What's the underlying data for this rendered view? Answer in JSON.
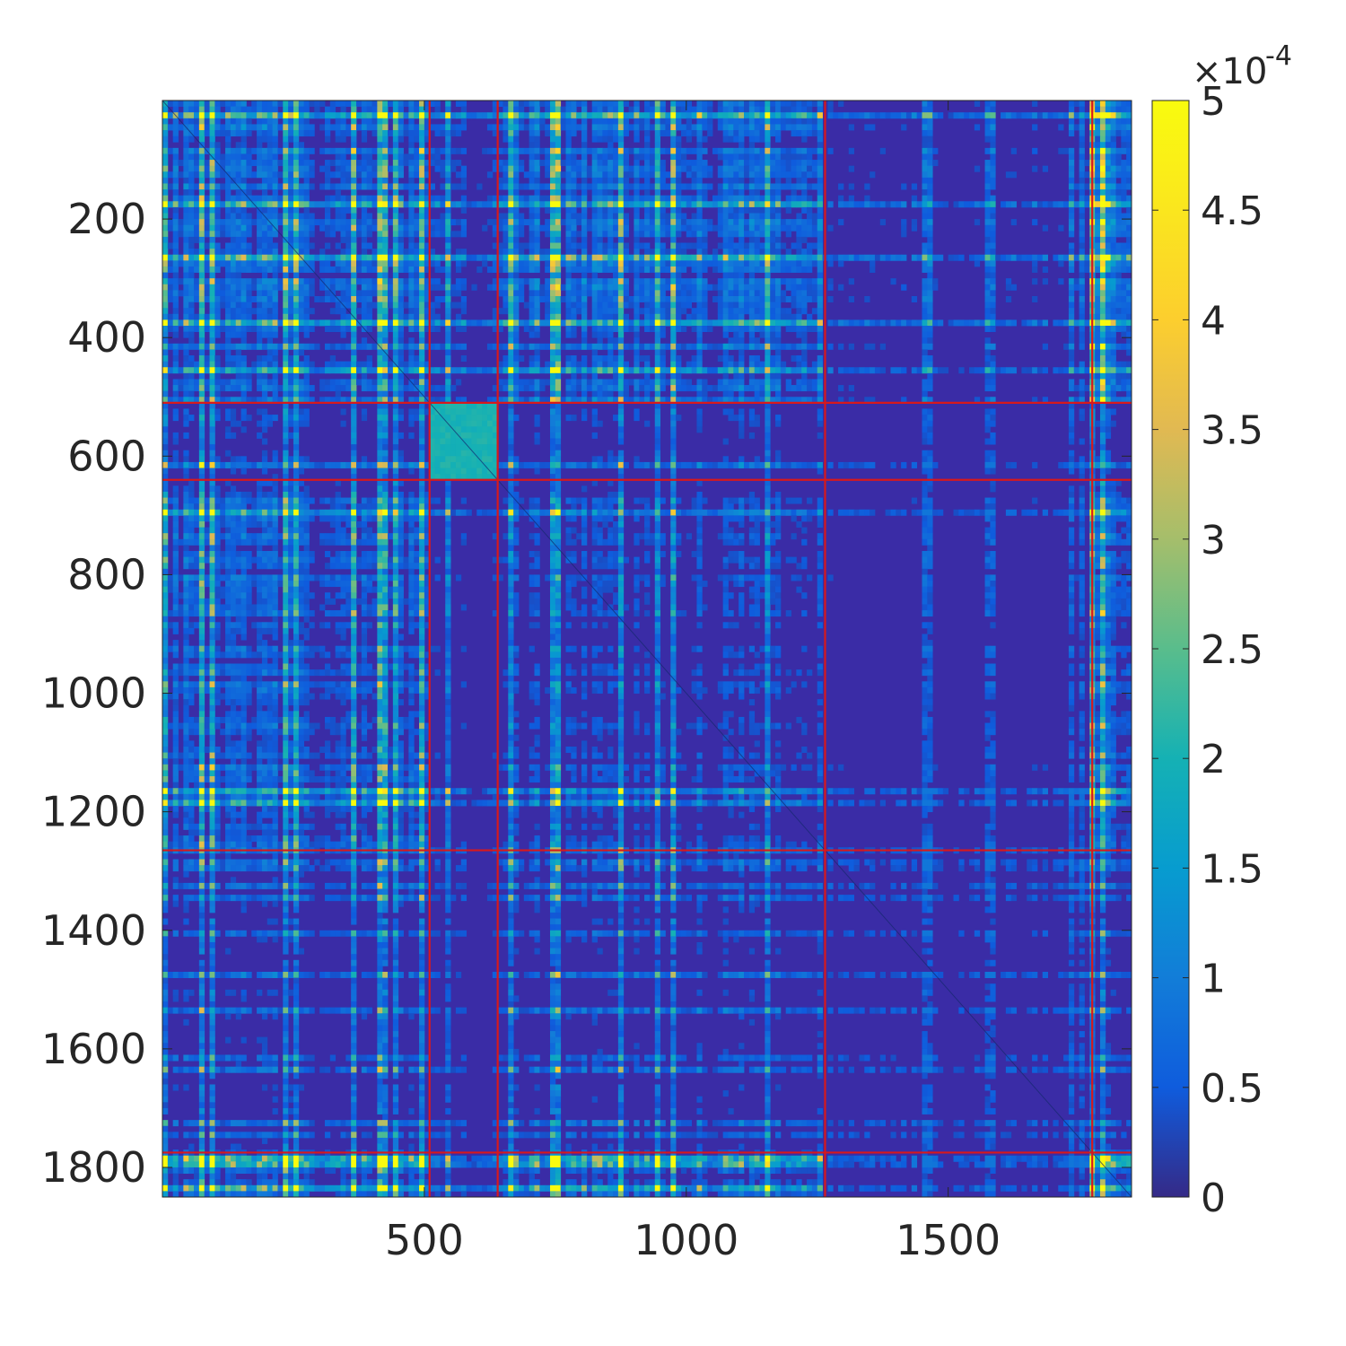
{
  "chart_data": {
    "type": "heatmap",
    "title": "",
    "xlabel": "",
    "ylabel": "",
    "matrix_size": 1850,
    "xlim": [
      1,
      1850
    ],
    "ylim": [
      1,
      1850
    ],
    "y_direction": "reversed",
    "x_ticks": [
      500,
      1000,
      1500
    ],
    "x_tick_labels": [
      "500",
      "1000",
      "1500"
    ],
    "y_ticks": [
      200,
      400,
      600,
      800,
      1000,
      1200,
      1400,
      1600,
      1800
    ],
    "y_tick_labels": [
      "200",
      "400",
      "600",
      "800",
      "1000",
      "1200",
      "1400",
      "1600",
      "1800"
    ],
    "block_boundaries": [
      510,
      640,
      1265,
      1775
    ],
    "block_boundary_color": "#d7191c",
    "block_mean_values": [
      [
        1.5,
        0.9,
        1.6,
        0.5,
        2.2
      ],
      [
        0.7,
        1.9,
        0.6,
        0.3,
        0.7
      ],
      [
        1.4,
        0.6,
        0.9,
        0.4,
        1.6
      ],
      [
        0.5,
        0.3,
        0.5,
        0.3,
        0.5
      ],
      [
        1.6,
        0.7,
        1.5,
        0.4,
        2.0
      ]
    ],
    "colorbar": {
      "colormap": "parula",
      "range": [
        0,
        5
      ],
      "ticks": [
        0,
        0.5,
        1,
        1.5,
        2,
        2.5,
        3,
        3.5,
        4,
        4.5,
        5
      ],
      "tick_labels": [
        "0",
        "0.5",
        "1",
        "1.5",
        "2",
        "2.5",
        "3",
        "3.5",
        "4",
        "4.5",
        "5"
      ],
      "exponent_prefix": "×10",
      "exponent": "-4",
      "location": "right"
    },
    "grid": false
  }
}
